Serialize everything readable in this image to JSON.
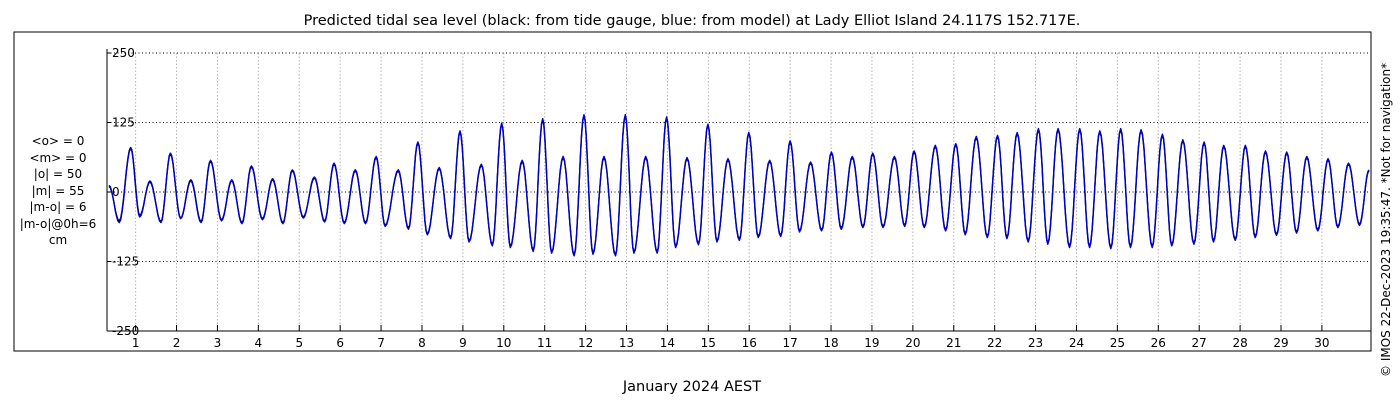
{
  "chart_data": {
    "type": "line",
    "title": "Predicted tidal sea level (black: from tide gauge, blue: from model) at Lady Elliot Island 24.117S 152.717E.",
    "xlabel": "January 2024 AEST",
    "ylabel": "",
    "unit": "cm",
    "xlim": [
      0.3,
      31.2
    ],
    "ylim": [
      -250,
      250
    ],
    "y_ticks": [
      250,
      125,
      0,
      -125,
      -250
    ],
    "x_ticks": [
      1,
      2,
      3,
      4,
      5,
      6,
      7,
      8,
      9,
      10,
      11,
      12,
      13,
      14,
      15,
      16,
      17,
      18,
      19,
      20,
      21,
      22,
      23,
      24,
      25,
      26,
      27,
      28,
      29,
      30
    ],
    "grid": true,
    "colors": {
      "observed": "#000000",
      "model": "#0000cc"
    },
    "series": [
      {
        "name": "from tide gauge",
        "color": "#000000",
        "x_days": [
          0.35,
          0.6,
          0.88,
          1.1,
          1.35,
          1.62,
          1.85,
          2.1,
          2.35,
          2.6,
          2.83,
          3.1,
          3.35,
          3.6,
          3.83,
          4.1,
          4.35,
          4.6,
          4.83,
          5.1,
          5.37,
          5.62,
          5.85,
          6.1,
          6.37,
          6.62,
          6.88,
          7.1,
          7.42,
          7.67,
          7.9,
          8.13,
          8.42,
          8.7,
          8.93,
          9.15,
          9.45,
          9.72,
          9.95,
          10.16,
          10.45,
          10.72,
          10.95,
          11.17,
          11.45,
          11.72,
          11.96,
          12.18,
          12.45,
          12.73,
          12.97,
          13.18,
          13.47,
          13.75,
          13.98,
          14.2,
          14.48,
          14.76,
          14.99,
          15.21,
          15.48,
          15.76,
          15.99,
          16.22,
          16.5,
          16.77,
          17.0,
          17.23,
          17.5,
          17.77,
          18.01,
          18.25,
          18.52,
          18.78,
          19.02,
          19.27,
          19.55,
          19.8,
          20.03,
          20.28,
          20.55,
          20.8,
          21.05,
          21.28,
          21.55,
          21.82,
          22.07,
          22.3,
          22.55,
          22.82,
          23.07,
          23.3,
          23.55,
          23.83,
          24.08,
          24.32,
          24.57,
          24.84,
          25.08,
          25.32,
          25.58,
          25.85,
          26.1,
          26.33,
          26.6,
          26.87,
          27.12,
          27.35,
          27.6,
          27.88,
          28.13,
          28.37,
          28.62,
          28.89,
          29.14,
          29.38,
          29.63,
          29.9,
          30.15,
          30.39,
          30.65,
          30.92,
          31.15
        ],
        "values": [
          10,
          -52,
          80,
          -42,
          18,
          -53,
          68,
          -47,
          22,
          -53,
          55,
          -50,
          20,
          -55,
          45,
          -48,
          22,
          -55,
          38,
          -45,
          25,
          -52,
          50,
          -55,
          38,
          -55,
          62,
          -60,
          38,
          -65,
          88,
          -75,
          42,
          -82,
          108,
          -88,
          48,
          -95,
          122,
          -98,
          55,
          -105,
          130,
          -108,
          62,
          -113,
          137,
          -110,
          62,
          -113,
          137,
          -108,
          62,
          -108,
          133,
          -98,
          60,
          -93,
          120,
          -88,
          58,
          -85,
          105,
          -80,
          55,
          -78,
          90,
          -70,
          52,
          -68,
          70,
          -65,
          62,
          -62,
          68,
          -62,
          62,
          -60,
          72,
          -62,
          82,
          -68,
          85,
          -75,
          98,
          -80,
          100,
          -82,
          105,
          -88,
          112,
          -92,
          112,
          -98,
          112,
          -98,
          108,
          -100,
          112,
          -98,
          110,
          -98,
          102,
          -95,
          92,
          -92,
          88,
          -88,
          82,
          -85,
          82,
          -80,
          72,
          -76,
          70,
          -72,
          62,
          -68,
          58,
          -62,
          50,
          -58,
          38
        ]
      },
      {
        "name": "from model",
        "color": "#0000cc",
        "x_days": [
          0.35,
          0.6,
          0.88,
          1.1,
          1.35,
          1.62,
          1.85,
          2.1,
          2.35,
          2.6,
          2.83,
          3.1,
          3.35,
          3.6,
          3.83,
          4.1,
          4.35,
          4.6,
          4.83,
          5.1,
          5.37,
          5.62,
          5.85,
          6.1,
          6.37,
          6.62,
          6.88,
          7.1,
          7.42,
          7.67,
          7.9,
          8.13,
          8.42,
          8.7,
          8.93,
          9.15,
          9.45,
          9.72,
          9.95,
          10.16,
          10.45,
          10.72,
          10.95,
          11.17,
          11.45,
          11.72,
          11.96,
          12.18,
          12.45,
          12.73,
          12.97,
          13.18,
          13.47,
          13.75,
          13.98,
          14.2,
          14.48,
          14.76,
          14.99,
          15.21,
          15.48,
          15.76,
          15.99,
          16.22,
          16.5,
          16.77,
          17.0,
          17.23,
          17.5,
          17.77,
          18.01,
          18.25,
          18.52,
          18.78,
          19.02,
          19.27,
          19.55,
          19.8,
          20.03,
          20.28,
          20.55,
          20.8,
          21.05,
          21.28,
          21.55,
          21.82,
          22.07,
          22.3,
          22.55,
          22.82,
          23.07,
          23.3,
          23.55,
          23.83,
          24.08,
          24.32,
          24.57,
          24.84,
          25.08,
          25.32,
          25.58,
          25.85,
          26.1,
          26.33,
          26.6,
          26.87,
          27.12,
          27.35,
          27.6,
          27.88,
          28.13,
          28.37,
          28.62,
          28.89,
          29.14,
          29.38,
          29.63,
          29.9,
          30.15,
          30.39,
          30.65,
          30.92,
          31.15
        ],
        "values": [
          12,
          -55,
          78,
          -45,
          20,
          -55,
          70,
          -48,
          20,
          -55,
          57,
          -52,
          22,
          -57,
          47,
          -50,
          24,
          -57,
          40,
          -47,
          27,
          -54,
          52,
          -57,
          40,
          -57,
          64,
          -62,
          40,
          -67,
          90,
          -77,
          44,
          -84,
          110,
          -90,
          50,
          -97,
          124,
          -100,
          57,
          -107,
          132,
          -110,
          64,
          -115,
          139,
          -112,
          64,
          -115,
          139,
          -110,
          64,
          -110,
          135,
          -100,
          62,
          -95,
          122,
          -90,
          60,
          -87,
          107,
          -82,
          57,
          -80,
          92,
          -72,
          54,
          -70,
          72,
          -67,
          64,
          -64,
          70,
          -64,
          64,
          -62,
          74,
          -64,
          84,
          -70,
          87,
          -77,
          100,
          -82,
          102,
          -84,
          107,
          -90,
          114,
          -94,
          114,
          -100,
          114,
          -100,
          110,
          -102,
          114,
          -100,
          112,
          -100,
          104,
          -97,
          94,
          -94,
          90,
          -90,
          84,
          -87,
          84,
          -82,
          74,
          -78,
          72,
          -74,
          64,
          -70,
          60,
          -64,
          52,
          -60,
          40
        ]
      }
    ]
  },
  "stats": {
    "o_mean": "<o> = 0",
    "m_mean": "<m> = 0",
    "o_abs": "|o| = 50",
    "m_abs": "|m| = 55",
    "mo_abs": "|m-o| = 6",
    "mo_0h": "|m-o|@0h=6",
    "unit": "cm"
  },
  "credit": "© IMOS 22-Dec-2023 19:35:47. *Not for navigation*"
}
